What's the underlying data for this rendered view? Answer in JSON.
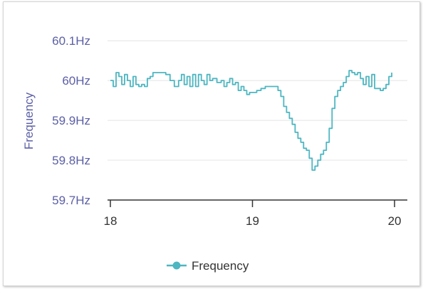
{
  "chart_data": {
    "type": "line",
    "title": "",
    "xlabel": "",
    "ylabel": "Frequency",
    "xlim": [
      17.98,
      20.09
    ],
    "ylim": [
      59.7,
      60.12
    ],
    "x_ticks": [
      {
        "value": 18,
        "label": "18"
      },
      {
        "value": 19,
        "label": "19"
      },
      {
        "value": 20,
        "label": "20"
      }
    ],
    "y_ticks": [
      {
        "value": 59.7,
        "label": "59.7Hz"
      },
      {
        "value": 59.8,
        "label": "59.8Hz"
      },
      {
        "value": 59.9,
        "label": "59.9Hz"
      },
      {
        "value": 60.0,
        "label": "60Hz"
      },
      {
        "value": 60.1,
        "label": "60.1Hz"
      }
    ],
    "grid": true,
    "legend": {
      "position": "bottom",
      "entries": [
        "Frequency"
      ]
    },
    "series": [
      {
        "name": "Frequency",
        "color": "#4db6c1",
        "x": [
          18.0,
          18.02,
          18.04,
          18.06,
          18.08,
          18.1,
          18.12,
          18.14,
          18.16,
          18.18,
          18.2,
          18.22,
          18.24,
          18.26,
          18.28,
          18.3,
          18.33,
          18.36,
          18.39,
          18.42,
          18.45,
          18.48,
          18.5,
          18.52,
          18.54,
          18.56,
          18.58,
          18.6,
          18.62,
          18.64,
          18.66,
          18.68,
          18.7,
          18.72,
          18.75,
          18.78,
          18.8,
          18.82,
          18.84,
          18.86,
          18.88,
          18.9,
          18.92,
          18.94,
          18.96,
          18.98,
          19.0,
          19.03,
          19.06,
          19.09,
          19.12,
          19.15,
          19.18,
          19.2,
          19.22,
          19.24,
          19.26,
          19.28,
          19.3,
          19.32,
          19.34,
          19.36,
          19.38,
          19.4,
          19.42,
          19.44,
          19.46,
          19.48,
          19.5,
          19.52,
          19.54,
          19.56,
          19.58,
          19.6,
          19.62,
          19.64,
          19.66,
          19.68,
          19.7,
          19.72,
          19.74,
          19.76,
          19.78,
          19.8,
          19.82,
          19.84,
          19.86,
          19.88,
          19.9,
          19.92,
          19.94,
          19.96,
          19.98
        ],
        "values": [
          60.0,
          59.985,
          60.02,
          60.01,
          59.99,
          60.015,
          60.0,
          59.985,
          60.01,
          59.99,
          59.985,
          59.99,
          59.985,
          60.005,
          60.01,
          60.02,
          60.02,
          60.02,
          60.015,
          60.0,
          59.985,
          60.0,
          60.015,
          59.99,
          60.01,
          59.985,
          60.015,
          59.985,
          60.015,
          60.0,
          59.99,
          60.015,
          60.0,
          60.005,
          59.995,
          60.0,
          59.985,
          59.995,
          60.005,
          59.99,
          59.995,
          59.975,
          59.985,
          59.975,
          59.965,
          59.97,
          59.97,
          59.975,
          59.98,
          59.985,
          59.985,
          59.985,
          59.975,
          59.96,
          59.935,
          59.92,
          59.905,
          59.89,
          59.87,
          59.855,
          59.845,
          59.83,
          59.825,
          59.805,
          59.775,
          59.785,
          59.8,
          59.815,
          59.825,
          59.845,
          59.88,
          59.93,
          59.96,
          59.975,
          59.985,
          59.995,
          60.01,
          60.025,
          60.02,
          60.015,
          60.02,
          60.005,
          59.99,
          60.01,
          59.985,
          60.015,
          59.98,
          59.98,
          59.975,
          59.98,
          59.99,
          60.01,
          60.02
        ]
      }
    ]
  }
}
